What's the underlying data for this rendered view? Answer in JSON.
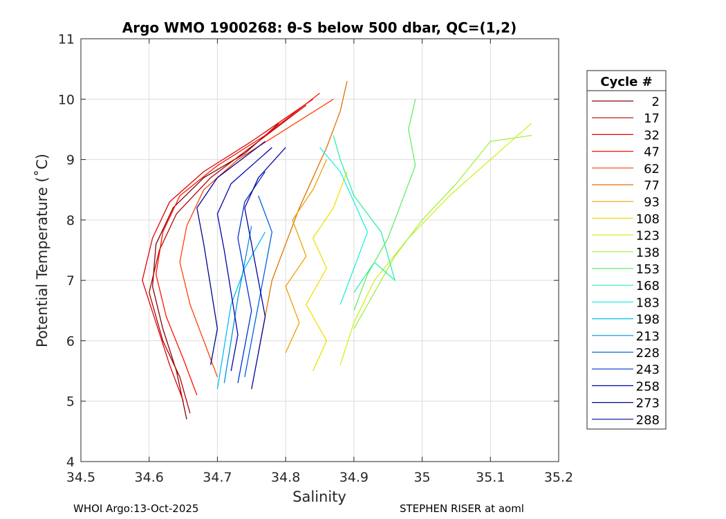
{
  "chart_data": {
    "type": "line",
    "title": "Argo WMO 1900268: θ-S below 500 dbar,  QC=(1,2)",
    "xlabel": "Salinity",
    "ylabel": "Potential Temperature (˚C)",
    "xlim": [
      34.5,
      35.2
    ],
    "ylim": [
      4,
      11
    ],
    "xticks": [
      "34.5",
      "34.6",
      "34.7",
      "34.8",
      "34.9",
      "35",
      "35.1",
      "35.2"
    ],
    "yticks": [
      "4",
      "5",
      "6",
      "7",
      "8",
      "9",
      "10",
      "11"
    ],
    "grid": true,
    "legend": {
      "title": "Cycle #",
      "placement": "outside-right",
      "entries": [
        {
          "label": "2",
          "color": "#800000"
        },
        {
          "label": "17",
          "color": "#b00000"
        },
        {
          "label": "32",
          "color": "#e00000"
        },
        {
          "label": "47",
          "color": "#ff1000"
        },
        {
          "label": "62",
          "color": "#ff4000"
        },
        {
          "label": "77",
          "color": "#e07000"
        },
        {
          "label": "93",
          "color": "#f0a000"
        },
        {
          "label": "108",
          "color": "#f0e000"
        },
        {
          "label": "123",
          "color": "#d0f020"
        },
        {
          "label": "138",
          "color": "#a0f040"
        },
        {
          "label": "153",
          "color": "#60f060"
        },
        {
          "label": "168",
          "color": "#30f0a0"
        },
        {
          "label": "183",
          "color": "#20f0e0"
        },
        {
          "label": "198",
          "color": "#00c0f0"
        },
        {
          "label": "213",
          "color": "#0090e0"
        },
        {
          "label": "228",
          "color": "#0060e0"
        },
        {
          "label": "243",
          "color": "#0030d0"
        },
        {
          "label": "258",
          "color": "#0000b0"
        },
        {
          "label": "273",
          "color": "#000090"
        },
        {
          "label": "288",
          "color": "#0000a0"
        }
      ]
    },
    "series": [
      {
        "cycle": "2",
        "color": "#800000",
        "points": [
          [
            34.655,
            4.7
          ],
          [
            34.64,
            5.5
          ],
          [
            34.62,
            6.2
          ],
          [
            34.605,
            6.9
          ],
          [
            34.61,
            7.6
          ],
          [
            34.635,
            8.2
          ],
          [
            34.68,
            8.7
          ],
          [
            34.74,
            9.1
          ],
          [
            34.79,
            9.6
          ]
        ]
      },
      {
        "cycle": "17",
        "color": "#b00000",
        "points": [
          [
            34.66,
            4.8
          ],
          [
            34.645,
            5.4
          ],
          [
            34.62,
            6.0
          ],
          [
            34.6,
            6.8
          ],
          [
            34.615,
            7.5
          ],
          [
            34.64,
            8.1
          ],
          [
            34.69,
            8.7
          ],
          [
            34.76,
            9.3
          ],
          [
            34.83,
            9.9
          ]
        ]
      },
      {
        "cycle": "32",
        "color": "#e00000",
        "points": [
          [
            34.65,
            5.0
          ],
          [
            34.63,
            5.6
          ],
          [
            34.61,
            6.3
          ],
          [
            34.59,
            7.0
          ],
          [
            34.605,
            7.7
          ],
          [
            34.63,
            8.3
          ],
          [
            34.68,
            8.8
          ],
          [
            34.75,
            9.3
          ],
          [
            34.84,
            10.0
          ]
        ]
      },
      {
        "cycle": "47",
        "color": "#ff1000",
        "points": [
          [
            34.67,
            5.1
          ],
          [
            34.65,
            5.7
          ],
          [
            34.625,
            6.4
          ],
          [
            34.61,
            7.1
          ],
          [
            34.62,
            7.8
          ],
          [
            34.645,
            8.4
          ],
          [
            34.7,
            8.9
          ],
          [
            34.77,
            9.4
          ],
          [
            34.85,
            10.1
          ]
        ]
      },
      {
        "cycle": "62",
        "color": "#ff4000",
        "points": [
          [
            34.7,
            5.4
          ],
          [
            34.68,
            6.0
          ],
          [
            34.66,
            6.6
          ],
          [
            34.645,
            7.3
          ],
          [
            34.655,
            7.9
          ],
          [
            34.68,
            8.5
          ],
          [
            34.73,
            9.0
          ],
          [
            34.8,
            9.5
          ],
          [
            34.87,
            10.0
          ]
        ]
      },
      {
        "cycle": "77",
        "color": "#e07000",
        "points": [
          [
            34.76,
            5.8
          ],
          [
            34.77,
            6.4
          ],
          [
            34.78,
            7.0
          ],
          [
            34.8,
            7.6
          ],
          [
            34.82,
            8.2
          ],
          [
            34.84,
            8.7
          ],
          [
            34.86,
            9.2
          ],
          [
            34.88,
            9.8
          ],
          [
            34.89,
            10.3
          ]
        ]
      },
      {
        "cycle": "93",
        "color": "#f0a000",
        "points": [
          [
            34.8,
            5.8
          ],
          [
            34.82,
            6.3
          ],
          [
            34.8,
            6.9
          ],
          [
            34.83,
            7.4
          ],
          [
            34.81,
            8.0
          ],
          [
            34.84,
            8.5
          ],
          [
            34.86,
            9.0
          ]
        ]
      },
      {
        "cycle": "108",
        "color": "#f0e000",
        "points": [
          [
            34.84,
            5.5
          ],
          [
            34.86,
            6.0
          ],
          [
            34.83,
            6.6
          ],
          [
            34.86,
            7.2
          ],
          [
            34.84,
            7.7
          ],
          [
            34.87,
            8.2
          ],
          [
            34.89,
            8.8
          ]
        ]
      },
      {
        "cycle": "123",
        "color": "#d0f020",
        "points": [
          [
            34.88,
            5.6
          ],
          [
            34.9,
            6.3
          ],
          [
            34.93,
            7.0
          ],
          [
            34.98,
            7.7
          ],
          [
            35.04,
            8.4
          ],
          [
            35.1,
            9.0
          ],
          [
            35.16,
            9.6
          ]
        ]
      },
      {
        "cycle": "138",
        "color": "#a0f040",
        "points": [
          [
            34.9,
            6.2
          ],
          [
            34.93,
            6.8
          ],
          [
            34.96,
            7.4
          ],
          [
            35.0,
            8.0
          ],
          [
            35.05,
            8.6
          ],
          [
            35.1,
            9.3
          ],
          [
            35.16,
            9.4
          ]
        ]
      },
      {
        "cycle": "153",
        "color": "#60f060",
        "points": [
          [
            34.9,
            6.5
          ],
          [
            34.92,
            7.1
          ],
          [
            34.95,
            7.7
          ],
          [
            34.97,
            8.3
          ],
          [
            34.99,
            8.9
          ],
          [
            34.98,
            9.5
          ],
          [
            34.99,
            10.0
          ]
        ]
      },
      {
        "cycle": "168",
        "color": "#30f0a0",
        "points": [
          [
            34.9,
            6.8
          ],
          [
            34.93,
            7.3
          ],
          [
            34.96,
            7.0
          ],
          [
            34.94,
            7.8
          ],
          [
            34.9,
            8.4
          ],
          [
            34.88,
            9.0
          ],
          [
            34.87,
            9.4
          ]
        ]
      },
      {
        "cycle": "183",
        "color": "#20f0e0",
        "points": [
          [
            34.88,
            6.6
          ],
          [
            34.9,
            7.2
          ],
          [
            34.92,
            7.8
          ],
          [
            34.9,
            8.3
          ],
          [
            34.88,
            8.8
          ],
          [
            34.85,
            9.2
          ]
        ]
      },
      {
        "cycle": "198",
        "color": "#00c0f0",
        "points": [
          [
            34.7,
            5.2
          ],
          [
            34.71,
            5.9
          ],
          [
            34.72,
            6.6
          ],
          [
            34.74,
            7.2
          ],
          [
            34.77,
            7.8
          ]
        ]
      },
      {
        "cycle": "213",
        "color": "#0090e0",
        "points": [
          [
            34.71,
            5.3
          ],
          [
            34.72,
            6.0
          ],
          [
            34.73,
            6.7
          ],
          [
            34.74,
            7.3
          ],
          [
            34.75,
            7.9
          ]
        ]
      },
      {
        "cycle": "228",
        "color": "#0060e0",
        "points": [
          [
            34.74,
            5.4
          ],
          [
            34.75,
            6.0
          ],
          [
            34.76,
            6.6
          ],
          [
            34.77,
            7.2
          ],
          [
            34.78,
            7.8
          ],
          [
            34.76,
            8.4
          ]
        ]
      },
      {
        "cycle": "243",
        "color": "#0030d0",
        "points": [
          [
            34.73,
            5.3
          ],
          [
            34.74,
            5.9
          ],
          [
            34.75,
            6.5
          ],
          [
            34.74,
            7.1
          ],
          [
            34.73,
            7.7
          ],
          [
            34.74,
            8.3
          ],
          [
            34.77,
            8.8
          ]
        ]
      },
      {
        "cycle": "258",
        "color": "#0000b0",
        "points": [
          [
            34.72,
            5.5
          ],
          [
            34.73,
            6.1
          ],
          [
            34.72,
            6.8
          ],
          [
            34.71,
            7.5
          ],
          [
            34.7,
            8.1
          ],
          [
            34.72,
            8.6
          ],
          [
            34.78,
            9.2
          ]
        ]
      },
      {
        "cycle": "273",
        "color": "#000090",
        "points": [
          [
            34.69,
            5.6
          ],
          [
            34.7,
            6.2
          ],
          [
            34.69,
            6.9
          ],
          [
            34.68,
            7.6
          ],
          [
            34.67,
            8.2
          ],
          [
            34.7,
            8.7
          ],
          [
            34.77,
            9.3
          ]
        ]
      },
      {
        "cycle": "288",
        "color": "#0000a0",
        "points": [
          [
            34.75,
            5.2
          ],
          [
            34.76,
            5.8
          ],
          [
            34.77,
            6.4
          ],
          [
            34.76,
            7.0
          ],
          [
            34.75,
            7.6
          ],
          [
            34.74,
            8.2
          ],
          [
            34.76,
            8.7
          ],
          [
            34.8,
            9.2
          ]
        ]
      }
    ]
  },
  "footer": {
    "left": "WHOI Argo:13-Oct-2025",
    "right": "STEPHEN RISER at aoml"
  }
}
